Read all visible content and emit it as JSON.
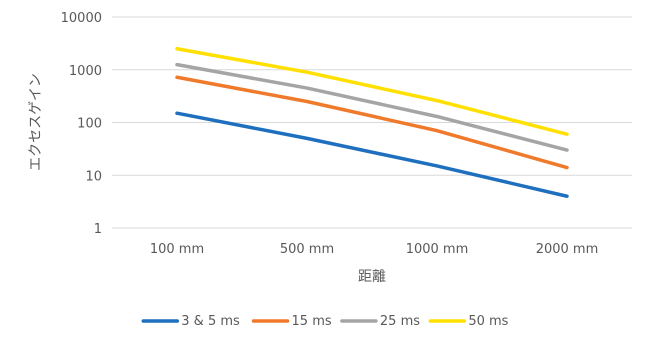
{
  "chart_data": {
    "type": "line",
    "title": "",
    "xlabel": "距離",
    "ylabel": "エクセスゲイン",
    "categories": [
      "100 mm",
      "500 mm",
      "1000 mm",
      "2000 mm"
    ],
    "y_scale": "log",
    "ylim": [
      1,
      10000
    ],
    "y_ticks": [
      1,
      10,
      100,
      1000,
      10000
    ],
    "y_tick_labels": [
      "1",
      "10",
      "100",
      "1000",
      "10000"
    ],
    "grid": true,
    "legend_position": "bottom",
    "series": [
      {
        "name": "3 & 5 ms",
        "color": "#1F6FBF",
        "values": [
          150,
          50,
          15,
          4
        ]
      },
      {
        "name": "15 ms",
        "color": "#F07A2B",
        "values": [
          720,
          250,
          70,
          14
        ]
      },
      {
        "name": "25 ms",
        "color": "#A5A5A5",
        "values": [
          1250,
          450,
          130,
          30
        ]
      },
      {
        "name": "50 ms",
        "color": "#FFE000",
        "values": [
          2500,
          900,
          260,
          60
        ]
      }
    ]
  }
}
